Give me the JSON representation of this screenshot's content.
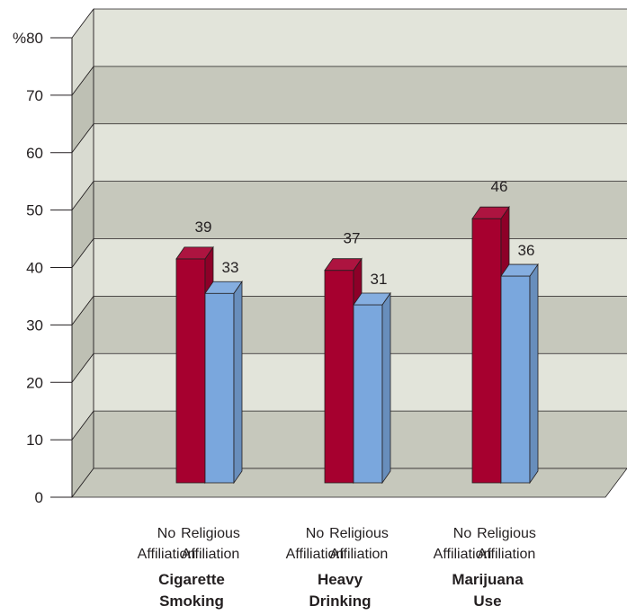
{
  "chart_data": {
    "type": "bar",
    "ylabel": "%",
    "ylim": [
      0,
      80
    ],
    "yticks": [
      0,
      10,
      20,
      30,
      40,
      50,
      60,
      70,
      80
    ],
    "ytick_labels": [
      "0",
      "10",
      "20",
      "30",
      "40",
      "50",
      "60",
      "70",
      "%80"
    ],
    "groups": [
      {
        "label_line1": "Cigarette",
        "label_line2": "Smoking"
      },
      {
        "label_line1": "Heavy",
        "label_line2": "Drinking"
      },
      {
        "label_line1": "Marijuana",
        "label_line2": "Use"
      }
    ],
    "series": [
      {
        "name_line1": "No",
        "name_line2": "Affiliation",
        "color": "#a6002f",
        "values": [
          39,
          37,
          46
        ]
      },
      {
        "name_line1": "Religious",
        "name_line2": "Affiliation",
        "color": "#7aa7dd",
        "values": [
          33,
          31,
          36
        ]
      }
    ],
    "band_colors": [
      "#c6c8bc",
      "#e2e4da"
    ],
    "floor_color": "#c6c8bc",
    "grid": true,
    "style": "3d"
  }
}
